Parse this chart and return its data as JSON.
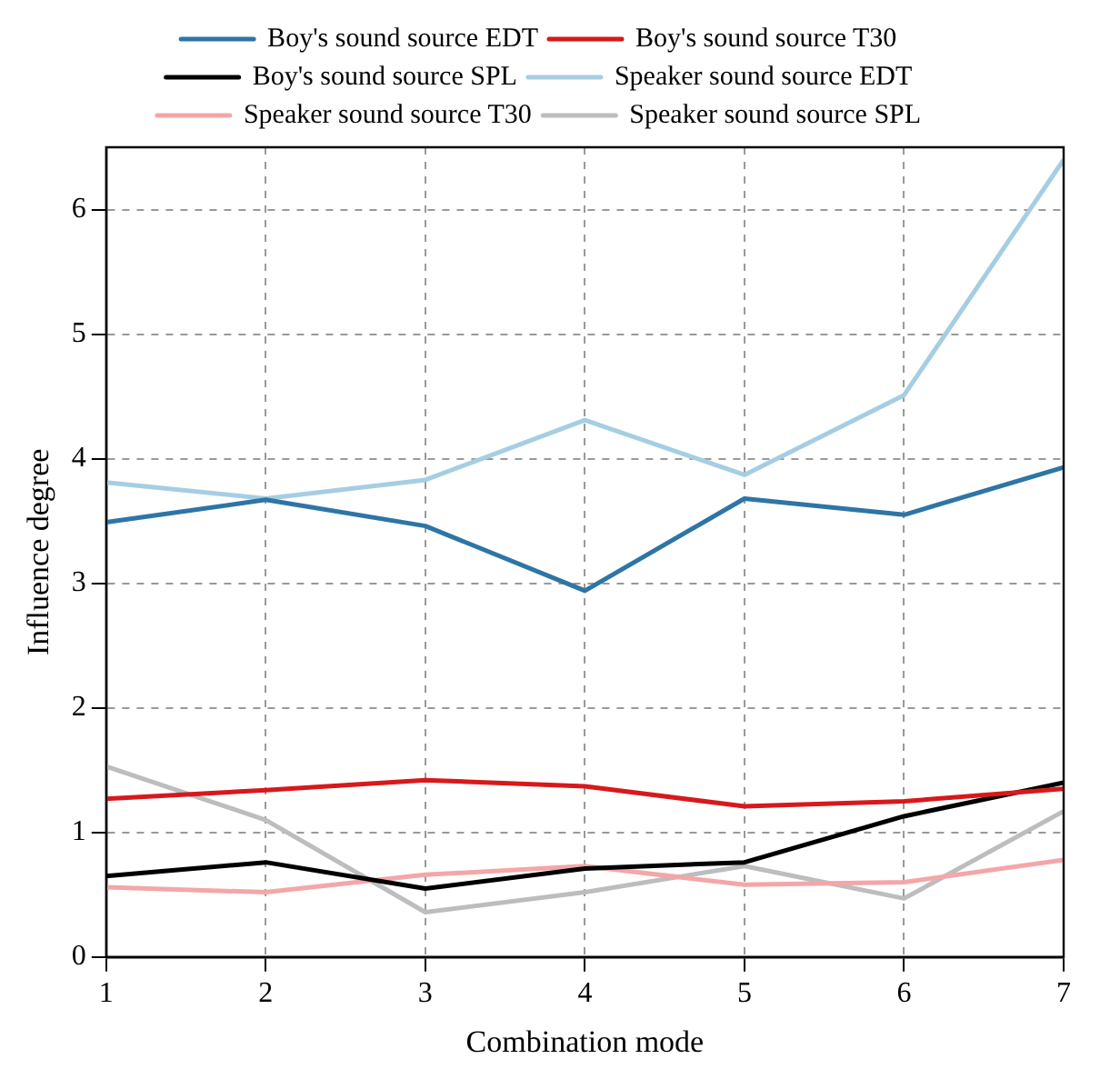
{
  "chart_data": {
    "type": "line",
    "xlabel": "Combination mode",
    "ylabel": "Influence degree",
    "x": [
      1,
      2,
      3,
      4,
      5,
      6,
      7
    ],
    "series": [
      {
        "name": "Boy's sound source EDT",
        "color": "#2e75a6",
        "values": [
          3.49,
          3.67,
          3.46,
          2.94,
          3.68,
          3.55,
          3.93
        ]
      },
      {
        "name": "Boy's sound source T30",
        "color": "#d7191c",
        "values": [
          1.27,
          1.34,
          1.42,
          1.37,
          1.21,
          1.25,
          1.35
        ]
      },
      {
        "name": "Boy's sound source SPL",
        "color": "#000000",
        "values": [
          0.65,
          0.76,
          0.55,
          0.71,
          0.76,
          1.13,
          1.4
        ]
      },
      {
        "name": "Speaker sound source EDT",
        "color": "#a6cee3",
        "values": [
          3.81,
          3.68,
          3.83,
          4.31,
          3.87,
          4.51,
          6.4
        ]
      },
      {
        "name": "Speaker sound source T30",
        "color": "#f4a6a8",
        "values": [
          0.56,
          0.52,
          0.66,
          0.73,
          0.58,
          0.6,
          0.78
        ]
      },
      {
        "name": "Speaker sound source SPL",
        "color": "#bdbdbd",
        "values": [
          1.53,
          1.1,
          0.36,
          0.52,
          0.73,
          0.47,
          1.17
        ]
      }
    ],
    "xlim": [
      1,
      7
    ],
    "xticks": [
      1,
      2,
      3,
      4,
      5,
      6,
      7
    ],
    "ylim": [
      0,
      6.5
    ],
    "yticks": [
      0,
      1,
      2,
      3,
      4,
      5,
      6
    ],
    "grid": true,
    "legend": "top",
    "marker": "none",
    "line_style": "solid"
  }
}
